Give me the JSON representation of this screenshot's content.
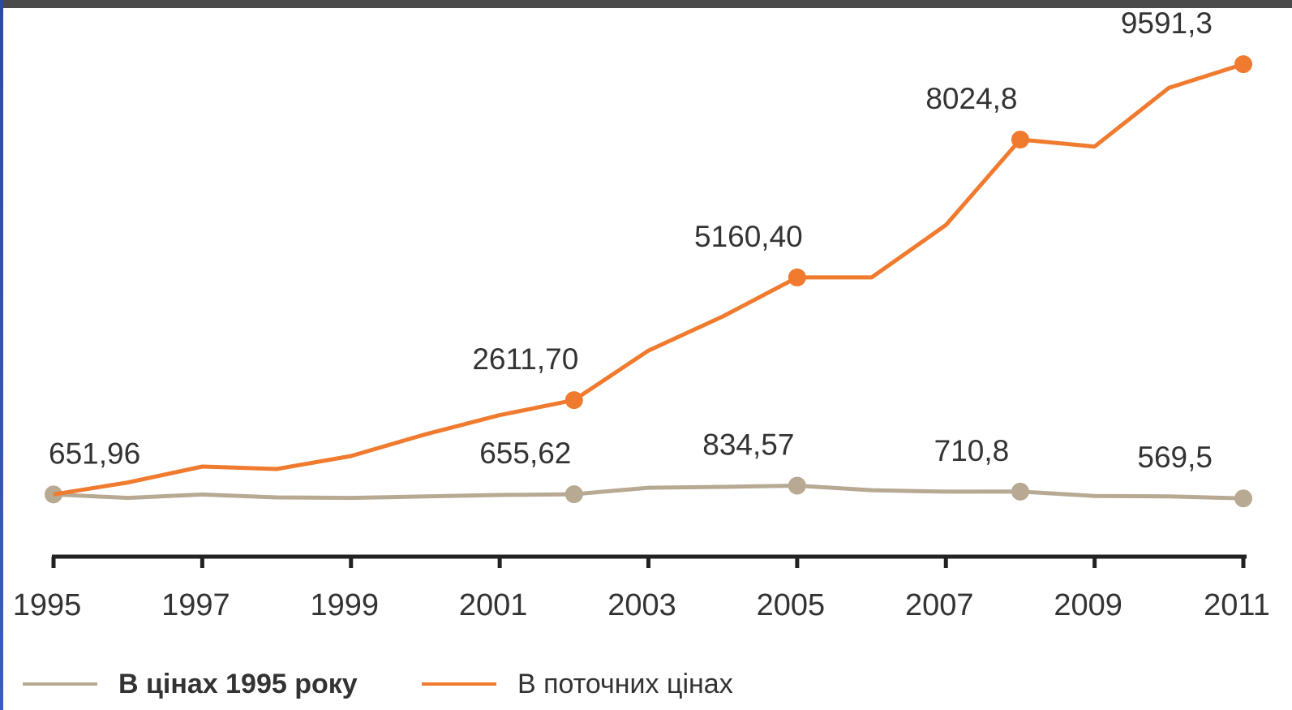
{
  "chart_data": {
    "type": "line",
    "x": [
      1995,
      1996,
      1997,
      1998,
      1999,
      2000,
      2001,
      2002,
      2003,
      2004,
      2005,
      2006,
      2007,
      2008,
      2009,
      2010,
      2011
    ],
    "xticks": [
      "1995",
      "1997",
      "1999",
      "2001",
      "2003",
      "2005",
      "2007",
      "2009",
      "2011"
    ],
    "xlim": [
      1995,
      2011
    ],
    "ylim": [
      0,
      10200
    ],
    "grid": false,
    "legend_position": "bottom-left",
    "series": [
      {
        "name": "В поточних цінах",
        "color": "#f07a2e",
        "values": [
          651.96,
          900,
          1230,
          1180,
          1450,
          1900,
          2300,
          2611.7,
          3640,
          4350,
          5160.4,
          5160,
          6250,
          8024.8,
          7880,
          9100,
          9591.3
        ],
        "labeled_points": [
          {
            "x": 2002,
            "label": "2611,70"
          },
          {
            "x": 2005,
            "label": "5160,40"
          },
          {
            "x": 2008,
            "label": "8024,8"
          },
          {
            "x": 2011,
            "label": "9591,3"
          }
        ]
      },
      {
        "name": "В цінах 1995 року",
        "color": "#b8a993",
        "values": [
          651.96,
          580,
          650,
          590,
          580,
          610,
          640,
          655.62,
          790,
          810,
          834.57,
          740,
          710,
          710.8,
          620,
          610,
          569.5
        ],
        "labeled_points": [
          {
            "x": 1995,
            "label": "651,96"
          },
          {
            "x": 2002,
            "label": "655,62"
          },
          {
            "x": 2005,
            "label": "834,57"
          },
          {
            "x": 2008,
            "label": "710,8"
          },
          {
            "x": 2011,
            "label": "569,5"
          }
        ]
      }
    ]
  },
  "legend": {
    "item1": {
      "label": "В цінах 1995 року",
      "color": "#b8a993"
    },
    "item2": {
      "label": "В поточних цінах",
      "color": "#f07a2e"
    }
  }
}
